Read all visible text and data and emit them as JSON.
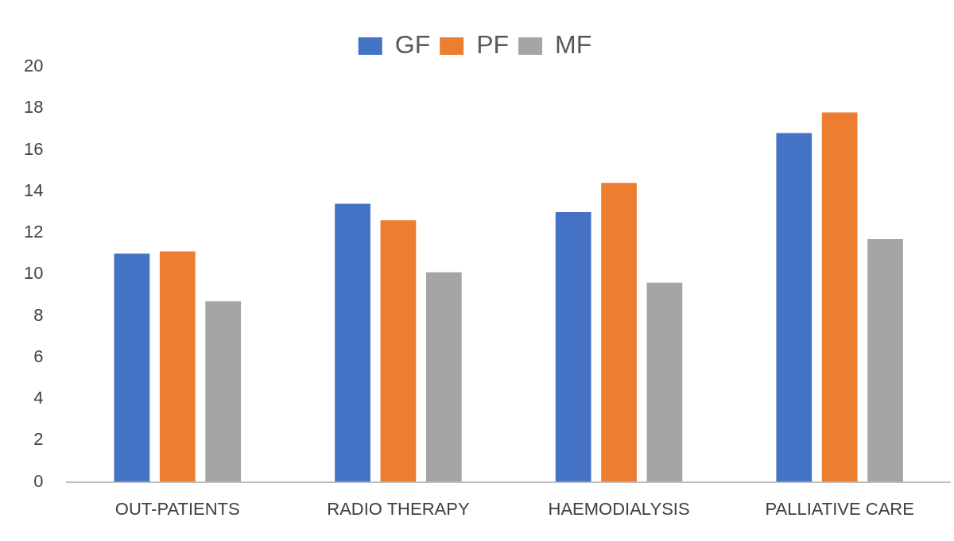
{
  "chart_data": {
    "type": "bar",
    "categories": [
      "OUT-PATIENTS",
      "RADIO THERAPY",
      "HAEMODIALYSIS",
      "PALLIATIVE CARE"
    ],
    "series": [
      {
        "name": "GF",
        "color": "#4472c4",
        "values": [
          11.0,
          13.4,
          13.0,
          16.8
        ]
      },
      {
        "name": "PF",
        "color": "#ed7d31",
        "values": [
          11.1,
          12.6,
          14.4,
          17.8
        ]
      },
      {
        "name": "MF",
        "color": "#a5a5a5",
        "values": [
          8.7,
          10.1,
          9.6,
          11.7
        ]
      }
    ],
    "ylim": [
      0,
      20
    ],
    "yticks": [
      0,
      2,
      4,
      6,
      8,
      10,
      12,
      14,
      16,
      18,
      20
    ],
    "grid": false,
    "legend": "top"
  }
}
